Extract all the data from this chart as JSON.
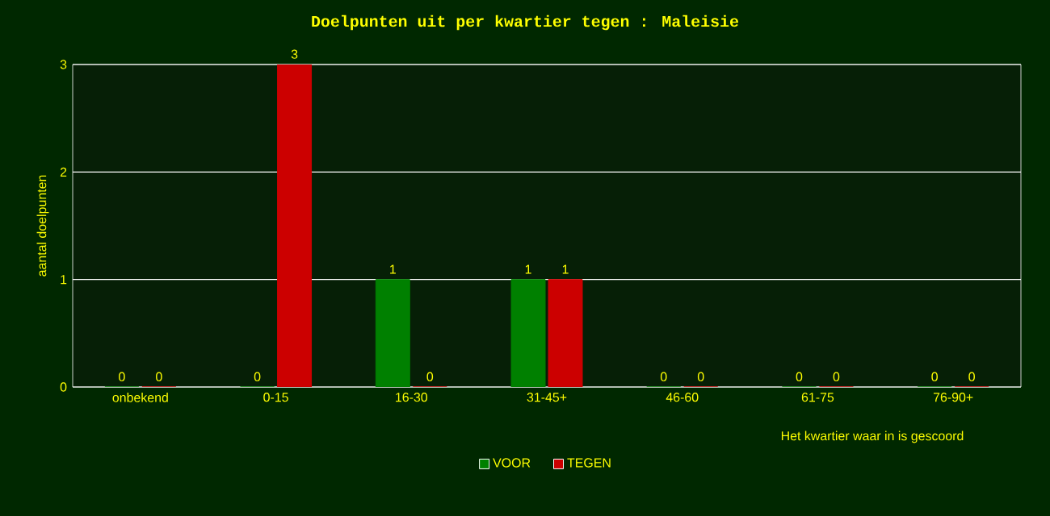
{
  "chart_data": {
    "type": "bar",
    "title": "Doelpunten uit per kwartier tegen : Maleisie",
    "xlabel": "Het kwartier waar in is gescoord",
    "ylabel": "aantal doelpunten",
    "categories": [
      "onbekend",
      "0-15",
      "16-30",
      "31-45+",
      "46-60",
      "61-75",
      "76-90+"
    ],
    "series": [
      {
        "name": "VOOR",
        "color": "#008000",
        "values": [
          0,
          0,
          1,
          1,
          0,
          0,
          0
        ]
      },
      {
        "name": "TEGEN",
        "color": "#cc0000",
        "values": [
          0,
          3,
          0,
          1,
          0,
          0,
          0
        ]
      }
    ],
    "ylim": [
      0,
      3
    ],
    "yticks": [
      0,
      1,
      2,
      3
    ],
    "grid": "y",
    "legend": "bottom",
    "data_labels": true
  }
}
